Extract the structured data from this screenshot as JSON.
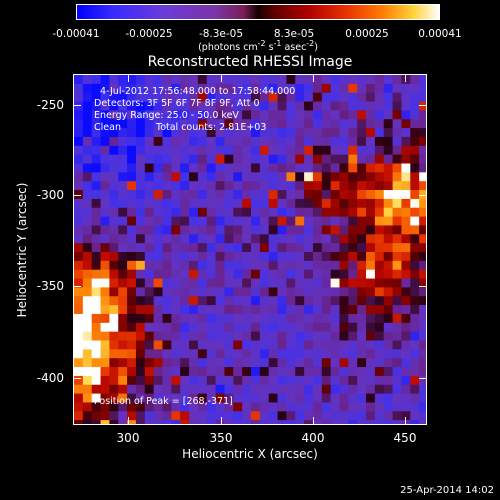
{
  "colorbar": {
    "ticks": [
      "-0.00041",
      "-0.00025",
      "-8.3e-05",
      "8.3e-05",
      "0.00025",
      "0.00041"
    ],
    "unit_text": "(photons cm",
    "unit_sup1": "-2",
    "unit_mid": " s",
    "unit_sup2": "-1",
    "unit_mid2": " asec",
    "unit_sup3": "-2",
    "unit_end": ")"
  },
  "chart_data": {
    "type": "heatmap",
    "title": "Reconstructed RHESSI Image",
    "xlabel": "Heliocentric X (arcsec)",
    "ylabel": "Heliocentric Y (arcsec)",
    "xlim": [
      266,
      460
    ],
    "ylim": [
      -425,
      -235
    ],
    "xticks": [
      "300",
      "350",
      "400",
      "450"
    ],
    "yticks": [
      "-250",
      "-300",
      "-350",
      "-400"
    ],
    "color_range": [
      -0.00041,
      0.00041
    ],
    "peak": [
      268,
      -371
    ]
  },
  "info": {
    "time_range": "4-Jul-2012 17:56:48.000 to 17:58:44.000",
    "detectors": "Detectors: 3F 5F 6F 7F 8F 9F, Att 0",
    "energy": "Energy Range: 25.0 - 50.0 keV",
    "method": "Clean",
    "counts": "Total counts: 2.81E+03",
    "peak": "Position of Peak = [268,-371]"
  },
  "timestamp": "25-Apr-2014 14:02"
}
